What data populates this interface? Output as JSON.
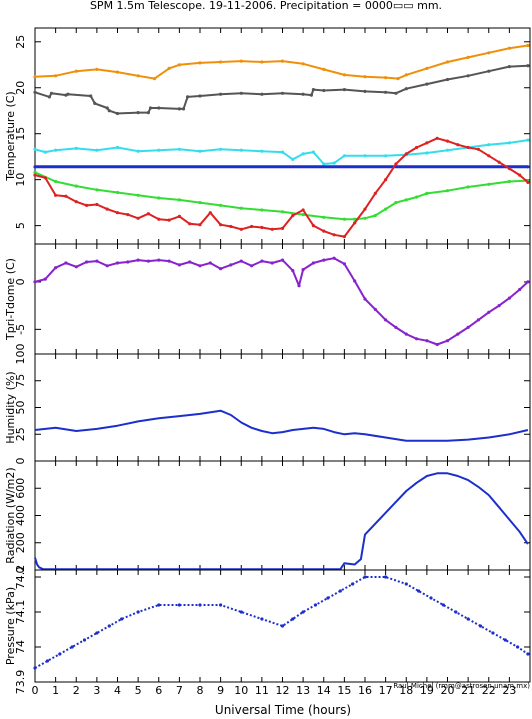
{
  "figure": {
    "title": "SPM 1.5m Telescope. 19-11-2006. Precipitation = 0000▭▭ mm.",
    "xlabel": "Universal Time (hours)",
    "credit": "Raul Michel (rmm@astrosen.unam.mx)",
    "xticks": [
      "0",
      "1",
      "2",
      "3",
      "4",
      "5",
      "6",
      "7",
      "8",
      "9",
      "10",
      "11",
      "12",
      "13",
      "14",
      "15",
      "16",
      "17",
      "18",
      "19",
      "20",
      "21",
      "22",
      "23"
    ]
  },
  "chart_data": [
    {
      "type": "scatter",
      "ylabel": "Temperature (C)",
      "xlim": [
        0,
        24
      ],
      "ylim": [
        3,
        26.5
      ],
      "yticks": [
        "5",
        "10",
        "15",
        "20",
        "25"
      ],
      "series": [
        {
          "color": "#f0900a",
          "x": [
            0,
            1,
            2,
            3,
            4,
            5,
            5.8,
            6.5,
            7,
            8,
            9,
            10,
            11,
            12,
            13,
            14,
            15,
            16,
            17,
            17.6,
            18,
            19,
            20,
            21,
            22,
            23,
            23.9
          ],
          "y": [
            21.2,
            21.3,
            21.8,
            22,
            21.7,
            21.3,
            21.0,
            22.1,
            22.5,
            22.7,
            22.8,
            22.9,
            22.8,
            22.9,
            22.6,
            22.0,
            21.4,
            21.2,
            21.1,
            21.0,
            21.4,
            22.1,
            22.8,
            23.3,
            23.8,
            24.3,
            24.6
          ]
        },
        {
          "color": "#555555",
          "x": [
            0,
            0.7,
            0.8,
            1.5,
            1.6,
            2.7,
            2.9,
            3.5,
            3.6,
            4,
            5,
            5.5,
            5.6,
            6,
            7,
            7.2,
            7.4,
            8,
            9,
            10,
            11,
            12,
            13,
            13.4,
            13.5,
            14,
            15,
            16,
            17,
            17.5,
            18,
            19,
            20,
            21,
            22,
            23,
            23.9
          ],
          "y": [
            19.5,
            19.0,
            19.4,
            19.2,
            19.3,
            19.1,
            18.3,
            17.8,
            17.5,
            17.2,
            17.3,
            17.3,
            17.8,
            17.8,
            17.7,
            17.7,
            19.0,
            19.1,
            19.3,
            19.4,
            19.3,
            19.4,
            19.3,
            19.2,
            19.8,
            19.7,
            19.8,
            19.6,
            19.5,
            19.4,
            19.9,
            20.4,
            20.9,
            21.3,
            21.8,
            22.3,
            22.4
          ]
        },
        {
          "color": "#33ddee",
          "x": [
            0,
            0.5,
            1,
            2,
            3,
            4,
            5,
            6,
            7,
            8,
            9,
            10,
            11,
            12,
            12.5,
            13,
            13.5,
            14,
            14.5,
            15,
            16,
            17,
            18,
            19,
            20,
            21,
            22,
            23,
            23.9
          ],
          "y": [
            13.3,
            13.0,
            13.2,
            13.4,
            13.2,
            13.5,
            13.1,
            13.2,
            13.3,
            13.1,
            13.3,
            13.2,
            13.1,
            13.0,
            12.2,
            12.8,
            13.0,
            11.7,
            11.8,
            12.6,
            12.6,
            12.6,
            12.7,
            12.9,
            13.2,
            13.5,
            13.8,
            14.0,
            14.3
          ]
        },
        {
          "color": "#1c2fcc",
          "x": [
            0,
            23.9
          ],
          "y": [
            11.4,
            11.4
          ]
        },
        {
          "color": "#33dd33",
          "x": [
            0,
            1,
            2,
            3,
            4,
            5,
            6,
            7,
            8,
            9,
            10,
            11,
            12,
            13,
            14,
            15,
            15.5,
            16,
            16.5,
            17,
            17.5,
            18,
            18.5,
            19,
            20,
            21,
            22,
            23,
            23.9
          ],
          "y": [
            10.8,
            9.8,
            9.3,
            8.9,
            8.6,
            8.3,
            8.0,
            7.8,
            7.5,
            7.2,
            6.9,
            6.7,
            6.5,
            6.2,
            5.9,
            5.7,
            5.7,
            5.8,
            6.1,
            6.8,
            7.5,
            7.8,
            8.1,
            8.5,
            8.8,
            9.2,
            9.5,
            9.8,
            9.9
          ]
        },
        {
          "color": "#dd2222",
          "x": [
            0,
            0.5,
            1,
            1.5,
            2,
            2.5,
            3,
            3.5,
            4,
            4.5,
            5,
            5.5,
            6,
            6.5,
            7,
            7.5,
            8,
            8.5,
            9,
            9.5,
            10,
            10.5,
            11,
            11.5,
            12,
            12.5,
            13,
            13.5,
            14,
            14.5,
            15,
            15.5,
            16,
            16.5,
            17,
            17.5,
            18,
            18.5,
            19,
            19.5,
            20,
            20.5,
            21,
            21.5,
            22,
            22.5,
            23,
            23.5,
            23.9
          ],
          "y": [
            10.5,
            10.2,
            8.3,
            8.2,
            7.6,
            7.2,
            7.3,
            6.8,
            6.4,
            6.2,
            5.8,
            6.3,
            5.7,
            5.6,
            6.0,
            5.2,
            5.1,
            6.4,
            5.1,
            4.9,
            4.6,
            4.9,
            4.8,
            4.6,
            4.7,
            6.1,
            6.7,
            5.0,
            4.4,
            4.0,
            3.8,
            5.3,
            6.8,
            8.5,
            10.0,
            11.7,
            12.8,
            13.5,
            14.0,
            14.5,
            14.2,
            13.8,
            13.5,
            13.3,
            12.6,
            11.9,
            11.2,
            10.5,
            9.7
          ]
        }
      ]
    },
    {
      "type": "scatter",
      "ylabel": "Tpri-Tdome (C)",
      "xlim": [
        0,
        24
      ],
      "ylim": [
        -7.6,
        4
      ],
      "yticks": [
        "-5",
        "0"
      ],
      "series": [
        {
          "color": "#8822cc",
          "x": [
            0,
            0.5,
            1,
            1.5,
            2,
            2.5,
            3,
            3.5,
            4,
            4.5,
            5,
            5.5,
            6,
            6.5,
            7,
            7.5,
            8,
            8.5,
            9,
            9.5,
            10,
            10.5,
            11,
            11.5,
            12,
            12.5,
            12.8,
            13,
            13.5,
            14,
            14.5,
            15,
            15.5,
            16,
            16.5,
            17,
            17.5,
            18,
            18.5,
            19,
            19.5,
            20,
            20.5,
            21,
            21.5,
            22,
            22.5,
            23,
            23.5,
            23.9
          ],
          "y": [
            0.0,
            0.3,
            1.5,
            2.0,
            1.6,
            2.1,
            2.2,
            1.7,
            2.0,
            2.1,
            2.3,
            2.2,
            2.3,
            2.2,
            1.8,
            2.1,
            1.7,
            2.0,
            1.4,
            1.8,
            2.2,
            1.7,
            2.2,
            2.0,
            2.3,
            1.2,
            -0.4,
            1.3,
            2.0,
            2.3,
            2.5,
            1.9,
            0.1,
            -1.8,
            -2.9,
            -4.0,
            -4.8,
            -5.5,
            -6.0,
            -6.2,
            -6.6,
            -6.2,
            -5.5,
            -4.8,
            -4.0,
            -3.2,
            -2.5,
            -1.7,
            -0.8,
            0.0
          ]
        }
      ]
    },
    {
      "type": "line",
      "ylabel": "Humidity (%)",
      "xlim": [
        0,
        24
      ],
      "ylim": [
        0,
        100
      ],
      "yticks": [
        "0",
        "25",
        "50",
        "75",
        "100"
      ],
      "series": [
        {
          "color": "#1c2fcc",
          "x": [
            0,
            0.5,
            1,
            2,
            3,
            4,
            5,
            6,
            7,
            8,
            9,
            9.5,
            10,
            10.5,
            11,
            11.5,
            12,
            12.5,
            13,
            13.5,
            14,
            14.5,
            15,
            15.5,
            16,
            17,
            18,
            19,
            20,
            21,
            22,
            23,
            23.9
          ],
          "y": [
            29,
            30,
            31,
            28,
            30,
            33,
            37,
            40,
            42,
            44,
            47,
            43,
            36,
            31,
            28,
            26,
            27,
            29,
            30,
            31,
            30,
            27,
            25,
            26,
            25,
            22,
            19,
            19,
            19,
            20,
            22,
            25,
            29
          ]
        }
      ]
    },
    {
      "type": "line",
      "ylabel": "Radiation (W/m2)",
      "xlim": [
        0,
        24
      ],
      "ylim": [
        0,
        800
      ],
      "yticks": [
        "0",
        "200",
        "400",
        "600"
      ],
      "series": [
        {
          "color": "#1c2fcc",
          "x": [
            0,
            0.1,
            0.2,
            0.4,
            1,
            2,
            3,
            4,
            5,
            6,
            7,
            8,
            9,
            10,
            11,
            12,
            13,
            14,
            14.8,
            15,
            15.5,
            15.8,
            16,
            16.5,
            17,
            17.5,
            18,
            18.5,
            19,
            19.5,
            20,
            20.5,
            21,
            21.5,
            22,
            22.5,
            23,
            23.5,
            23.9
          ],
          "y": [
            90,
            40,
            20,
            5,
            5,
            5,
            5,
            5,
            5,
            5,
            5,
            5,
            5,
            5,
            5,
            5,
            5,
            5,
            5,
            50,
            40,
            80,
            260,
            340,
            420,
            500,
            580,
            640,
            690,
            710,
            710,
            690,
            660,
            610,
            550,
            460,
            370,
            280,
            190
          ]
        }
      ]
    },
    {
      "type": "scatter",
      "ylabel": "Pressure (kPa)",
      "xlim": [
        0,
        24
      ],
      "ylim": [
        73.9,
        74.22
      ],
      "yticks": [
        "73.9",
        "74",
        "74.1",
        "74.2"
      ],
      "series": [
        {
          "color": "#1c2fcc",
          "x": [
            0,
            0.6,
            1.2,
            1.8,
            2.4,
            3,
            3.6,
            4.2,
            5,
            6,
            7,
            8,
            9,
            10,
            11,
            12,
            12.5,
            13,
            13.6,
            14.2,
            14.8,
            15.4,
            16,
            17,
            18,
            18.6,
            19.2,
            19.8,
            20.4,
            21,
            21.6,
            22.2,
            22.8,
            23.4,
            23.9
          ],
          "y": [
            73.94,
            73.96,
            73.98,
            74.0,
            74.02,
            74.04,
            74.06,
            74.08,
            74.1,
            74.12,
            74.12,
            74.12,
            74.12,
            74.1,
            74.08,
            74.06,
            74.08,
            74.1,
            74.12,
            74.14,
            74.16,
            74.18,
            74.2,
            74.2,
            74.18,
            74.16,
            74.14,
            74.12,
            74.1,
            74.08,
            74.06,
            74.04,
            74.02,
            74.0,
            73.98
          ]
        }
      ]
    }
  ]
}
